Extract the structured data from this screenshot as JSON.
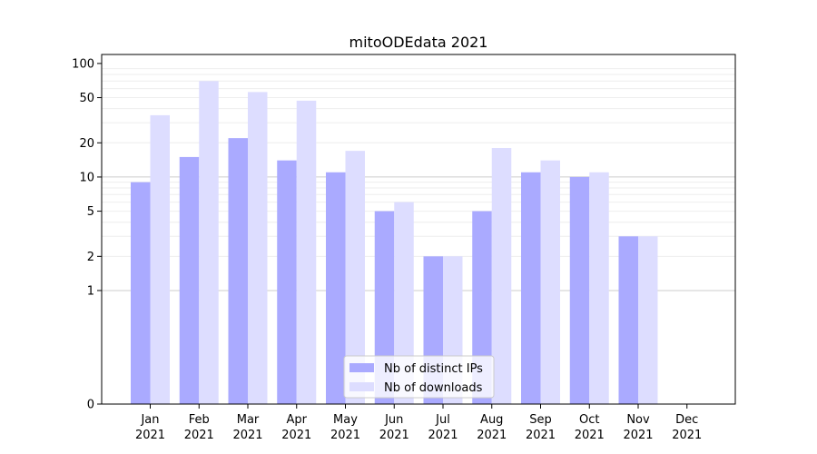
{
  "chart_data": {
    "type": "bar",
    "title": "mitoODEdata 2021",
    "xlabel": "",
    "ylabel": "",
    "yscale": "symlog",
    "ylim": [
      0,
      120
    ],
    "yticks": [
      0,
      1,
      2,
      5,
      10,
      20,
      50,
      100
    ],
    "ytick_labels": [
      "0",
      "1",
      "2",
      "5",
      "10",
      "20",
      "50",
      "100"
    ],
    "categories": [
      "Jan\n2021",
      "Feb\n2021",
      "Mar\n2021",
      "Apr\n2021",
      "May\n2021",
      "Jun\n2021",
      "Jul\n2021",
      "Aug\n2021",
      "Sep\n2021",
      "Oct\n2021",
      "Nov\n2021",
      "Dec\n2021"
    ],
    "category_months": [
      "Jan",
      "Feb",
      "Mar",
      "Apr",
      "May",
      "Jun",
      "Jul",
      "Aug",
      "Sep",
      "Oct",
      "Nov",
      "Dec"
    ],
    "category_years": [
      "2021",
      "2021",
      "2021",
      "2021",
      "2021",
      "2021",
      "2021",
      "2021",
      "2021",
      "2021",
      "2021",
      "2021"
    ],
    "series": [
      {
        "name": "Nb of distinct IPs",
        "color": "#aaaaff",
        "values": [
          9,
          15,
          22,
          14,
          11,
          5,
          2,
          5,
          11,
          10,
          3,
          0
        ]
      },
      {
        "name": "Nb of downloads",
        "color": "#ddddff",
        "values": [
          35,
          70,
          56,
          47,
          17,
          6,
          2,
          18,
          14,
          11,
          3,
          0
        ]
      }
    ],
    "grid": true,
    "legend_position": "lower-center"
  }
}
